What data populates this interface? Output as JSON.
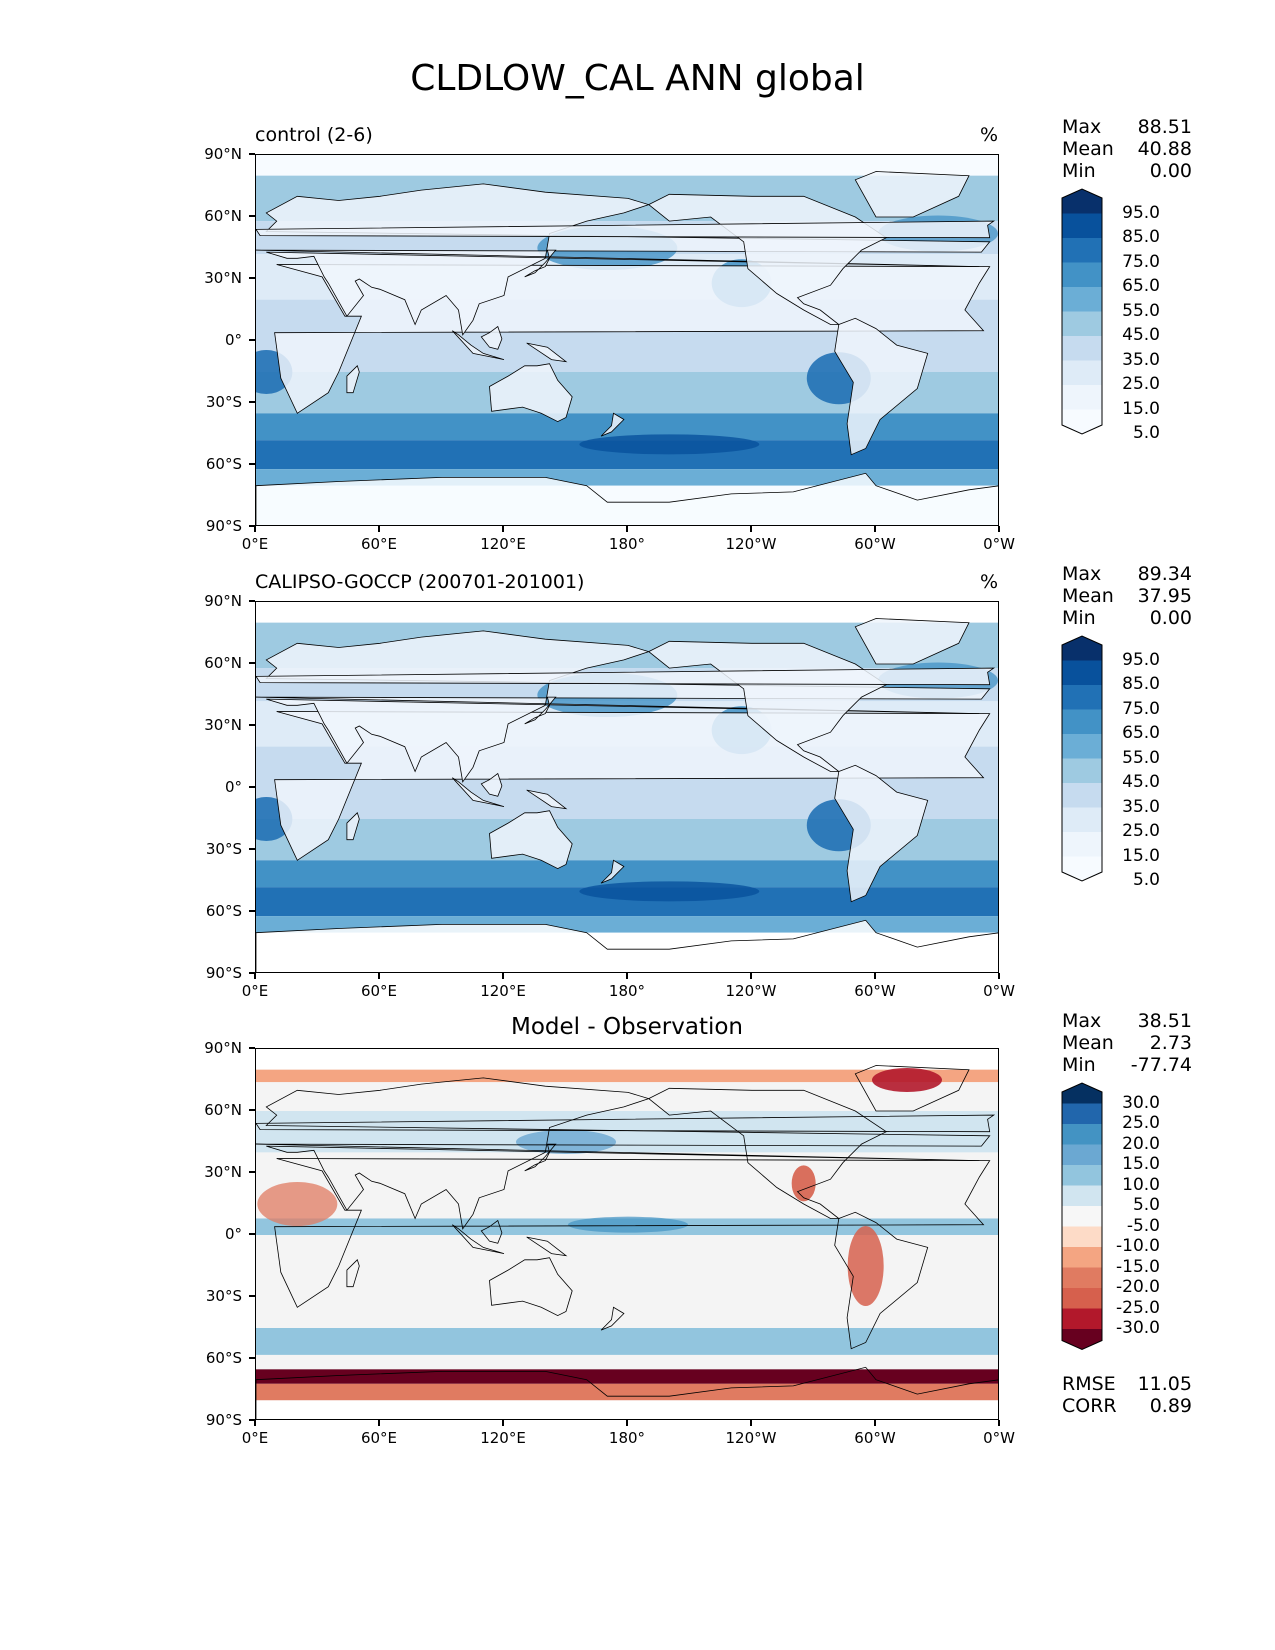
{
  "title": "CLDLOW_CAL ANN global",
  "x_tick_labels": [
    "0°E",
    "60°E",
    "120°E",
    "180°",
    "120°W",
    "60°W",
    "0°W"
  ],
  "y_tick_labels": [
    "90°N",
    "60°N",
    "30°N",
    "0°",
    "30°S",
    "60°S",
    "90°S"
  ],
  "panels": [
    {
      "title_left": "control (2-6)",
      "title_right": "%",
      "title_center": "",
      "stats": [
        {
          "k": "Max",
          "v": "88.51"
        },
        {
          "k": "Mean",
          "v": "40.88"
        },
        {
          "k": "Min",
          "v": "0.00"
        }
      ],
      "extra_stats": [],
      "colorbar_labels": [
        "95.0",
        "85.0",
        "75.0",
        "65.0",
        "55.0",
        "45.0",
        "35.0",
        "25.0",
        "15.0",
        "5.0"
      ],
      "colorbar_colors": [
        "#08306b",
        "#08519c",
        "#2171b5",
        "#4292c6",
        "#6baed6",
        "#9ecae1",
        "#c6dbef",
        "#deebf7",
        "#eef5fc",
        "#f7fbff"
      ],
      "map_background": "#eef5fc",
      "polar_fill": "#f7fbff"
    },
    {
      "title_left": "CALIPSO-GOCCP (200701-201001)",
      "title_right": "%",
      "title_center": "",
      "stats": [
        {
          "k": "Max",
          "v": "89.34"
        },
        {
          "k": "Mean",
          "v": "37.95"
        },
        {
          "k": "Min",
          "v": "0.00"
        }
      ],
      "extra_stats": [],
      "colorbar_labels": [
        "95.0",
        "85.0",
        "75.0",
        "65.0",
        "55.0",
        "45.0",
        "35.0",
        "25.0",
        "15.0",
        "5.0"
      ],
      "colorbar_colors": [
        "#08306b",
        "#08519c",
        "#2171b5",
        "#4292c6",
        "#6baed6",
        "#9ecae1",
        "#c6dbef",
        "#deebf7",
        "#eef5fc",
        "#f7fbff"
      ],
      "map_background": "#deebf7",
      "polar_fill": "#ffffff"
    },
    {
      "title_left": "",
      "title_right": "",
      "title_center": "Model - Observation",
      "stats": [
        {
          "k": "Max",
          "v": "38.51"
        },
        {
          "k": "Mean",
          "v": "2.73"
        },
        {
          "k": "Min",
          "v": "-77.74"
        }
      ],
      "extra_stats": [
        {
          "k": "RMSE",
          "v": "11.05"
        },
        {
          "k": "CORR",
          "v": "0.89"
        }
      ],
      "colorbar_labels": [
        "30.0",
        "25.0",
        "20.0",
        "15.0",
        "10.0",
        "5.0",
        "-5.0",
        "-10.0",
        "-15.0",
        "-20.0",
        "-25.0",
        "-30.0"
      ],
      "colorbar_colors": [
        "#053061",
        "#2166ac",
        "#4393c3",
        "#6ba8d2",
        "#92c5de",
        "#d1e5f0",
        "#f7f7f7",
        "#fddbc7",
        "#f4a582",
        "#e07b61",
        "#d6604d",
        "#b2182b",
        "#67001f"
      ],
      "map_background": "#f4f4f4",
      "polar_fill": "#ffffff"
    }
  ]
}
